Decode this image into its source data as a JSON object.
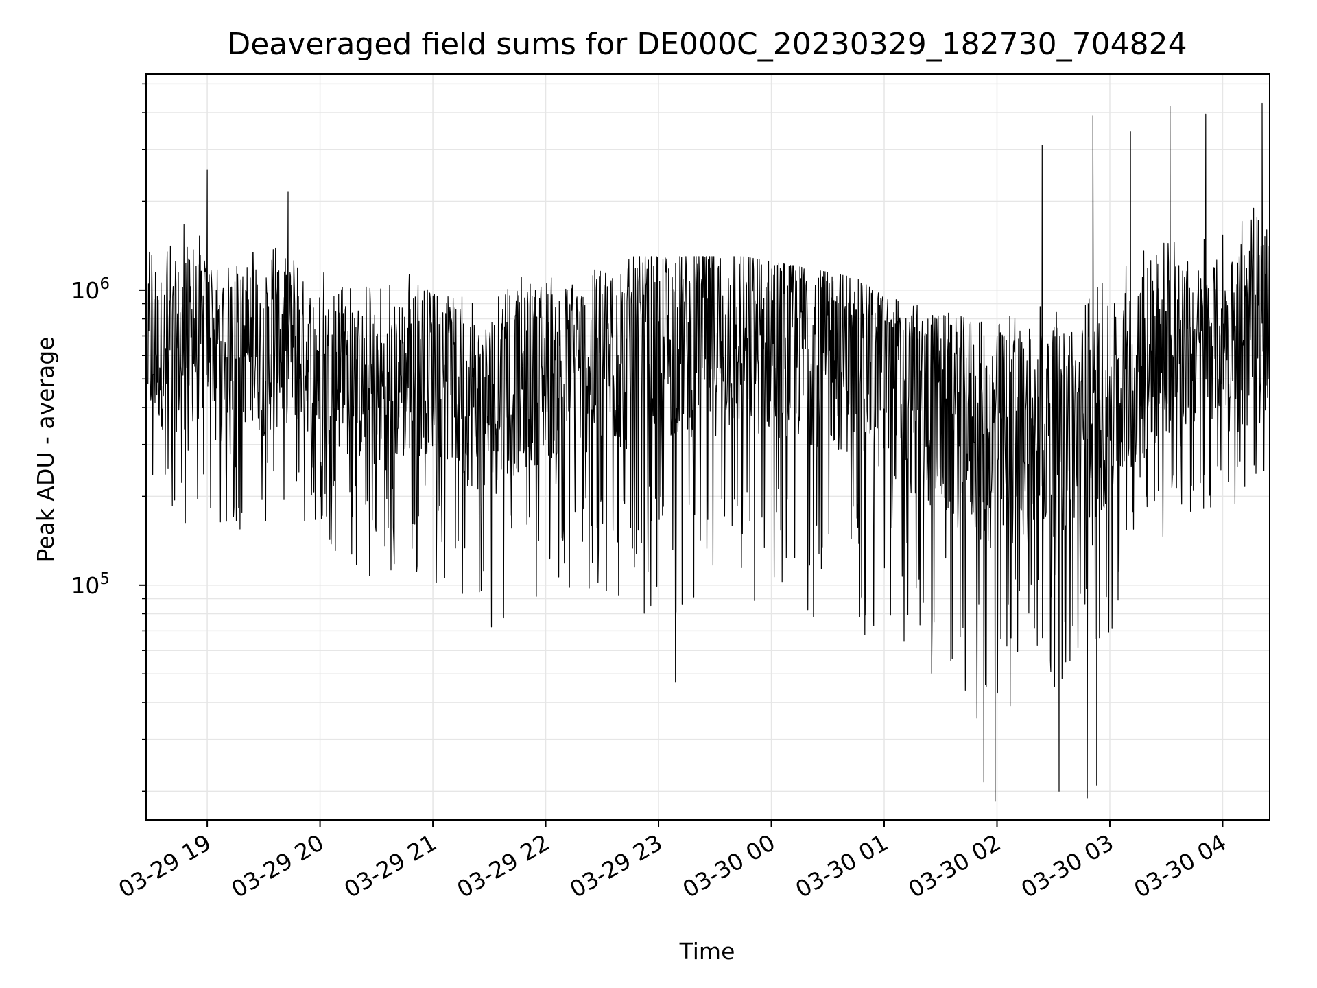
{
  "chart_data": {
    "type": "line",
    "title": "Deaveraged field sums for DE000C_20230329_182730_704824",
    "xlabel": "Time",
    "ylabel": "Peak ADU - average",
    "x_scale": "time",
    "y_scale": "log",
    "xlim": [
      "2023-03-29T18:27:30",
      "2023-03-30T04:25:00"
    ],
    "ylim": [
      16000,
      5400000
    ],
    "x_tick_labels": [
      "03-29 19",
      "03-29 20",
      "03-29 21",
      "03-29 22",
      "03-29 23",
      "03-30 00",
      "03-30 01",
      "03-30 02",
      "03-30 03",
      "03-30 04"
    ],
    "x_ticks": [
      "2023-03-29T19:00",
      "2023-03-29T20:00",
      "2023-03-29T21:00",
      "2023-03-29T22:00",
      "2023-03-29T23:00",
      "2023-03-30T00:00",
      "2023-03-30T01:00",
      "2023-03-30T02:00",
      "2023-03-30T03:00",
      "2023-03-30T04:00"
    ],
    "y_tick_labels": [
      {
        "base": "10",
        "exp": "5",
        "value": 100000
      },
      {
        "base": "10",
        "exp": "6",
        "value": 1000000
      }
    ],
    "grid": true,
    "line_color": "#000000",
    "grid_color": "#e6e6e6",
    "series": [
      {
        "x": [
          "2023-03-29T18:30",
          "2023-03-29T18:45",
          "2023-03-29T19:00",
          "2023-03-29T19:15",
          "2023-03-29T19:30",
          "2023-03-29T19:45",
          "2023-03-29T20:00",
          "2023-03-29T20:15",
          "2023-03-29T20:30",
          "2023-03-29T20:45",
          "2023-03-29T21:00",
          "2023-03-29T21:15",
          "2023-03-29T21:30",
          "2023-03-29T21:45",
          "2023-03-29T22:00",
          "2023-03-29T22:15",
          "2023-03-29T22:30",
          "2023-03-29T22:45",
          "2023-03-29T23:00",
          "2023-03-29T23:15",
          "2023-03-29T23:30",
          "2023-03-29T23:45",
          "2023-03-30T00:00",
          "2023-03-30T00:15",
          "2023-03-30T00:30",
          "2023-03-30T00:45",
          "2023-03-30T01:00",
          "2023-03-30T01:15",
          "2023-03-30T01:30",
          "2023-03-30T01:45",
          "2023-03-30T02:00",
          "2023-03-30T02:15",
          "2023-03-30T02:30",
          "2023-03-30T02:45",
          "2023-03-30T03:00",
          "2023-03-30T03:15",
          "2023-03-30T03:30",
          "2023-03-30T03:45",
          "2023-03-30T04:00",
          "2023-03-30T04:15"
        ],
        "typical": [
          600000,
          650000,
          700000,
          650000,
          600000,
          650000,
          550000,
          500000,
          450000,
          500000,
          550000,
          450000,
          400000,
          480000,
          520000,
          550000,
          580000,
          600000,
          650000,
          680000,
          700000,
          700000,
          680000,
          650000,
          620000,
          580000,
          500000,
          420000,
          380000,
          350000,
          300000,
          320000,
          330000,
          350000,
          400000,
          500000,
          600000,
          650000,
          700000,
          800000
        ],
        "high": [
          1400000,
          1800000,
          1500000,
          1300000,
          1500000,
          1400000,
          1300000,
          1100000,
          1000000,
          1200000,
          1100000,
          1000000,
          1000000,
          1100000,
          1150000,
          1150000,
          1200000,
          1300000,
          1300000,
          1300000,
          1300000,
          1300000,
          1250000,
          1200000,
          1150000,
          1100000,
          950000,
          900000,
          850000,
          800000,
          800000,
          900000,
          900000,
          1000000,
          1100000,
          1400000,
          1500000,
          1700000,
          1700000,
          1900000
        ],
        "low": [
          180000,
          150000,
          140000,
          150000,
          150000,
          160000,
          140000,
          120000,
          100000,
          110000,
          100000,
          80000,
          70000,
          85000,
          95000,
          90000,
          85000,
          80000,
          80000,
          80000,
          75000,
          75000,
          80000,
          75000,
          72000,
          70000,
          60000,
          55000,
          45000,
          35000,
          30000,
          42000,
          45000,
          50000,
          60000,
          120000,
          150000,
          170000,
          180000,
          200000
        ],
        "spikes": [
          {
            "x": "2023-03-29T19:00",
            "y": 2550000
          },
          {
            "x": "2023-03-29T19:43",
            "y": 2150000
          },
          {
            "x": "2023-03-30T02:24",
            "y": 3100000
          },
          {
            "x": "2023-03-30T02:51",
            "y": 3900000
          },
          {
            "x": "2023-03-30T03:11",
            "y": 3450000
          },
          {
            "x": "2023-03-30T03:32",
            "y": 4200000
          },
          {
            "x": "2023-03-30T03:51",
            "y": 3950000
          },
          {
            "x": "2023-03-30T04:21",
            "y": 4300000
          }
        ],
        "dips": [
          {
            "x": "2023-03-29T23:09",
            "y": 47000
          },
          {
            "x": "2023-03-30T01:53",
            "y": 21500
          },
          {
            "x": "2023-03-30T01:59",
            "y": 18500
          },
          {
            "x": "2023-03-30T02:33",
            "y": 20000
          },
          {
            "x": "2023-03-30T02:48",
            "y": 19000
          },
          {
            "x": "2023-03-30T02:53",
            "y": 21000
          }
        ]
      }
    ]
  }
}
